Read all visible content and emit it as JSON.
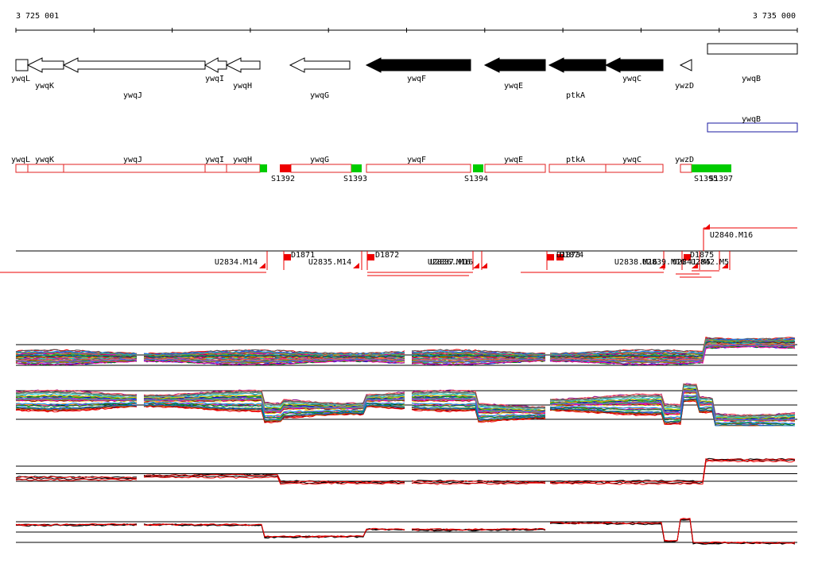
{
  "ruler": {
    "start": "3 725 001",
    "end": "3 735 000"
  },
  "gene_track": [
    "ywqL",
    "ywqK",
    "ywqJ",
    "ywqI",
    "ywqH",
    "ywqG",
    "ywqF",
    "ywqE",
    "ptkA",
    "ywqC",
    "ywzD",
    "ywqB"
  ],
  "protein_track": {
    "label": "ywqB"
  },
  "segment_track": {
    "genes": [
      "ywqL",
      "ywqK",
      "ywqJ",
      "ywqI",
      "ywqH",
      "ywqG",
      "ywqF",
      "ywqE",
      "ptkA",
      "ywqC",
      "ywzD"
    ],
    "sites": [
      "S1392",
      "S1393",
      "S1394",
      "S1395",
      "S1397"
    ]
  },
  "probe_track": {
    "labels": [
      "U2840.M16",
      "U2834.M14",
      "D1871",
      "U2835.M14",
      "D1872",
      "U2836.M16",
      "U2837.M16",
      "D1873",
      "D1874",
      "U2838.M16",
      "U2839.M16",
      "D1875",
      "U2841.M5",
      "U2842.M5"
    ]
  }
}
